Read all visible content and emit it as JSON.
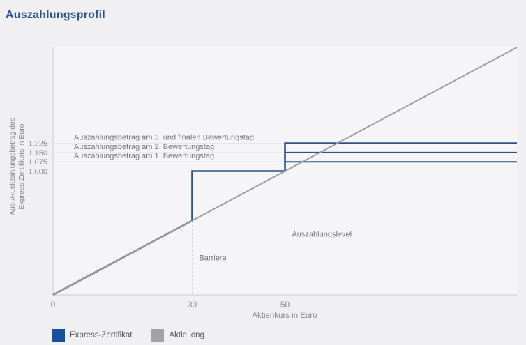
{
  "page": {
    "title": "Auszahlungsprofil"
  },
  "colors": {
    "page_bg": "#f0f0f2",
    "plot_bg": "#f5f5f7",
    "title_blue": "#2b5191",
    "express_blue": "#2e5383",
    "aktie_gray": "#9d9da0",
    "legend_blue": "#17519e",
    "legend_gray": "#a3a3a6",
    "axis_text": "#8a8a8e",
    "annotation_text": "#77777b",
    "grid": "#e3e3e6",
    "axis_line": "#d9d9dc",
    "dashed_line": "#d2d2d6"
  },
  "chart_data": {
    "type": "line",
    "title": "Auszahlungsprofil",
    "xlabel": "Aktienkurs in Euro",
    "ylabel_lines": [
      "Aus-/Rückzahlungsbetrag des",
      "Express-Zertifikats in Euro"
    ],
    "xlim": [
      0,
      100
    ],
    "ylim": [
      0,
      2000
    ],
    "grid": true,
    "legend_position": "bottom-left",
    "xticks": [
      {
        "value": 0,
        "label": "0"
      },
      {
        "value": 30,
        "label": "30"
      },
      {
        "value": 50,
        "label": "50"
      }
    ],
    "yticks": [
      {
        "value": 1225,
        "label": "1.225"
      },
      {
        "value": 1150,
        "label": "1.150"
      },
      {
        "value": 1075,
        "label": "1.075"
      },
      {
        "value": 1000,
        "label": "1.000"
      }
    ],
    "gridlines_y": [
      1225,
      1150,
      1075,
      1000
    ],
    "key_levels": {
      "barriere_aktienkurs": 30,
      "auszahlungslevel_aktienkurs": 50,
      "nominal": 1000,
      "payout_day1": 1075,
      "payout_day2": 1150,
      "payout_day3": 1225
    },
    "series": [
      {
        "id": "express-zertifikat",
        "name": "Express-Zertifikat",
        "color": "#2e5383",
        "width": 2.6,
        "points": [
          [
            0,
            0
          ],
          [
            30,
            600
          ],
          [
            30,
            1000
          ],
          [
            50,
            1000
          ],
          [
            50,
            1225
          ],
          [
            100,
            1225
          ]
        ]
      },
      {
        "id": "express-payout-day2",
        "name": "Express-Zertifikat (2. Bewertungstag)",
        "color": "#2e5383",
        "width": 2,
        "points": [
          [
            50,
            1150
          ],
          [
            100,
            1150
          ]
        ]
      },
      {
        "id": "express-payout-day1",
        "name": "Express-Zertifikat (1. Bewertungstag)",
        "color": "#2e5383",
        "width": 2,
        "points": [
          [
            50,
            1075
          ],
          [
            100,
            1075
          ]
        ]
      },
      {
        "id": "aktie-long",
        "name": "Aktie long",
        "color": "#9d9da0",
        "width": 2,
        "points": [
          [
            0,
            0
          ],
          [
            100,
            2000
          ]
        ]
      }
    ],
    "dashed_verticals": [
      {
        "x": 30,
        "y_top": 600
      },
      {
        "x": 50,
        "y_top": 1000
      }
    ],
    "annotations": [
      {
        "name": "label-payout-day3",
        "text": "Auszahlungsbetrag am 3. und finalen Bewertungstag",
        "x": 4.5,
        "y": 1225,
        "dy": -5
      },
      {
        "name": "label-payout-day2",
        "text": "Auszahlungsbetrag am 2. Bewertungstag",
        "x": 4.5,
        "y": 1150,
        "dy": -5
      },
      {
        "name": "label-payout-day1",
        "text": "Auszahlungsbetrag am 1. Bewertungstag",
        "x": 4.5,
        "y": 1075,
        "dy": -5
      },
      {
        "name": "label-barriere",
        "text": "Barriere",
        "x": 31.5,
        "y": 280,
        "dy": 0
      },
      {
        "name": "label-auszahlungslevel",
        "text": "Auszahlungslevel",
        "x": 51.5,
        "y": 470,
        "dy": 0
      }
    ]
  },
  "legend": {
    "items": [
      {
        "label": "Express-Zertifikat",
        "color": "#17519e"
      },
      {
        "label": "Aktie long",
        "color": "#a3a3a6"
      }
    ]
  }
}
